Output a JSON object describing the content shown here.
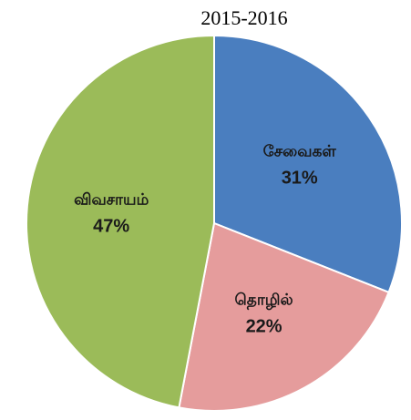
{
  "chart_data": {
    "type": "pie",
    "title": "2015-2016",
    "categories": [
      "சேவைகள்",
      "தொழில்",
      "விவசாயம்"
    ],
    "values": [
      31,
      22,
      47
    ],
    "value_labels": [
      "31%",
      "22%",
      "47%"
    ],
    "colors": [
      "#4a7ebf",
      "#e59c9c",
      "#9bbb59"
    ]
  }
}
